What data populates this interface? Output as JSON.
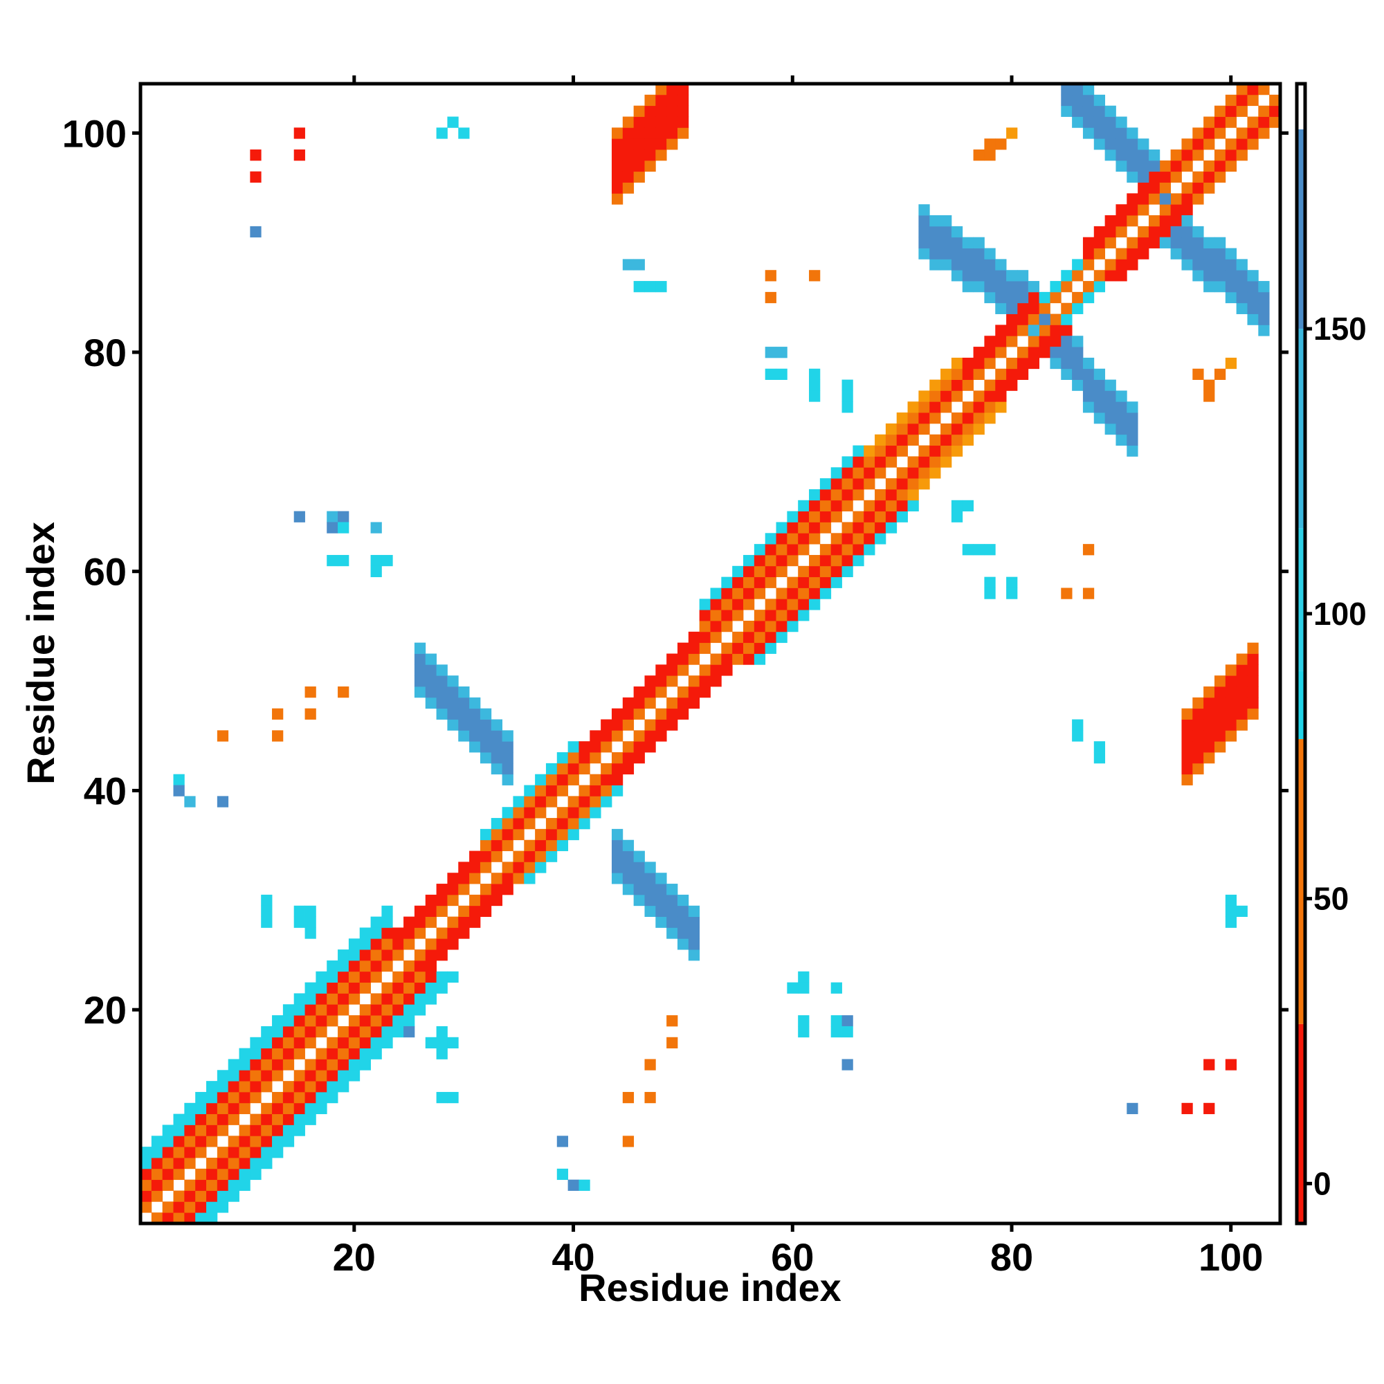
{
  "chart_data": {
    "type": "heatmap",
    "title": "",
    "xlabel": "Residue index",
    "ylabel": "Residue index",
    "xlim": [
      1,
      104
    ],
    "ylim": [
      1,
      104
    ],
    "x_ticks": [
      20,
      40,
      60,
      80,
      100
    ],
    "y_ticks": [
      20,
      40,
      60,
      80,
      100
    ],
    "colorbar": {
      "ticks": [
        0,
        50,
        100,
        150
      ],
      "range": [
        -7,
        193
      ],
      "bins": [
        {
          "from": -7,
          "to": 28,
          "color": "#f51a0a"
        },
        {
          "from": 28,
          "to": 78,
          "color": "#f2750a"
        },
        {
          "from": 78,
          "to": 90,
          "color": "#21d4e8"
        },
        {
          "from": 90,
          "to": 115,
          "color": "#2ed0e6"
        },
        {
          "from": 115,
          "to": 150,
          "color": "#3cb8de"
        },
        {
          "from": 150,
          "to": 185,
          "color": "#4a8cc8"
        },
        {
          "from": 185,
          "to": 193,
          "color": "#ffffff"
        }
      ]
    },
    "categories": [
      {
        "name": "red",
        "color": "#f51a0a",
        "value": 5
      },
      {
        "name": "orange",
        "color": "#f2750a",
        "value": 50
      },
      {
        "name": "amber",
        "color": "#f79a0a",
        "value": 70
      },
      {
        "name": "cyan",
        "color": "#21d4e8",
        "value": 95
      },
      {
        "name": "light-blue",
        "color": "#3cb8de",
        "value": 120
      },
      {
        "name": "steel-blue",
        "color": "#4a8cc8",
        "value": 165
      }
    ],
    "diagonal_band": {
      "pattern_by_offset": {
        "1": 1,
        "2": 0,
        "3": 1,
        "4": 0,
        "5": 3,
        "6": 1
      },
      "segments": [
        {
          "from": 1,
          "to": 23,
          "max_offset": 6,
          "outer_color": 3
        },
        {
          "from": 24,
          "to": 31,
          "max_offset": 3,
          "outer_color": 0
        },
        {
          "from": 32,
          "to": 40,
          "max_offset": 4,
          "outer_color": 3
        },
        {
          "from": 41,
          "to": 51,
          "max_offset": 3,
          "outer_color": 0
        },
        {
          "from": 52,
          "to": 66,
          "max_offset": 5,
          "outer_color": 3
        },
        {
          "from": 67,
          "to": 75,
          "max_offset": 4,
          "outer_color": 2
        },
        {
          "from": 76,
          "to": 82,
          "max_offset": 3,
          "outer_color": 0
        },
        {
          "from": 83,
          "to": 86,
          "max_offset": 2,
          "outer_color": 3
        },
        {
          "from": 87,
          "to": 93,
          "max_offset": 3,
          "outer_color": 0
        },
        {
          "from": 94,
          "to": 104,
          "max_offset": 3,
          "outer_color": 1
        }
      ]
    },
    "antiparallel_bands": [
      {
        "i_from": 26,
        "i_to": 34,
        "j_start": 51,
        "j_step": -1,
        "width": 2,
        "color": 5,
        "edge_color": 4
      },
      {
        "i_from": 44,
        "i_to": 51,
        "j_start": 34,
        "j_step": -1,
        "width": 2,
        "color": 5,
        "edge_color": 4
      },
      {
        "i_from": 72,
        "i_to": 83,
        "j_start": 91,
        "j_step": -0.7,
        "width": 2,
        "color": 5,
        "edge_color": 4
      },
      {
        "i_from": 84,
        "i_to": 91,
        "j_start": 81,
        "j_step": -1.2,
        "width": 2,
        "color": 5,
        "edge_color": 4
      },
      {
        "i_from": 85,
        "i_to": 94,
        "j_start": 104,
        "j_step": -1,
        "width": 2,
        "color": 5,
        "edge_color": 4
      },
      {
        "i_from": 94,
        "i_to": 103,
        "j_start": 92,
        "j_step": -0.9,
        "width": 2,
        "color": 5,
        "edge_color": 4
      }
    ],
    "parallel_bands": [
      {
        "i_from": 44,
        "i_to": 50,
        "j_start": 97,
        "j_step": 1,
        "width": 3,
        "color": 0,
        "edge_color": 1
      },
      {
        "i_from": 96,
        "i_to": 102,
        "j_start": 44,
        "j_step": 1,
        "width": 3,
        "color": 0,
        "edge_color": 1
      }
    ],
    "points": [
      [
        11,
        98,
        0
      ],
      [
        11,
        96,
        0
      ],
      [
        15,
        100,
        0
      ],
      [
        15,
        98,
        0
      ],
      [
        11,
        91,
        5
      ],
      [
        28,
        100,
        3
      ],
      [
        29,
        101,
        3
      ],
      [
        30,
        100,
        3
      ],
      [
        45,
        88,
        4
      ],
      [
        46,
        88,
        4
      ],
      [
        46,
        86,
        3
      ],
      [
        47,
        86,
        3
      ],
      [
        48,
        86,
        3
      ],
      [
        58,
        87,
        1
      ],
      [
        58,
        85,
        1
      ],
      [
        62,
        87,
        1
      ],
      [
        58,
        80,
        4
      ],
      [
        59,
        80,
        4
      ],
      [
        58,
        78,
        3
      ],
      [
        59,
        78,
        3
      ],
      [
        62,
        78,
        3
      ],
      [
        62,
        77,
        3
      ],
      [
        62,
        76,
        3
      ],
      [
        65,
        77,
        3
      ],
      [
        65,
        76,
        3
      ],
      [
        65,
        75,
        3
      ],
      [
        77,
        98,
        1
      ],
      [
        78,
        98,
        1
      ],
      [
        78,
        99,
        1
      ],
      [
        79,
        99,
        1
      ],
      [
        80,
        100,
        2
      ],
      [
        97,
        78,
        1
      ],
      [
        98,
        77,
        1
      ],
      [
        98,
        76,
        1
      ],
      [
        99,
        78,
        1
      ],
      [
        100,
        79,
        2
      ],
      [
        15,
        65,
        5
      ],
      [
        18,
        65,
        4
      ],
      [
        18,
        64,
        5
      ],
      [
        19,
        65,
        5
      ],
      [
        19,
        64,
        3
      ],
      [
        22,
        64,
        4
      ],
      [
        18,
        61,
        3
      ],
      [
        19,
        61,
        3
      ],
      [
        22,
        61,
        3
      ],
      [
        23,
        61,
        3
      ],
      [
        22,
        60,
        3
      ],
      [
        16,
        49,
        1
      ],
      [
        19,
        49,
        1
      ],
      [
        13,
        47,
        1
      ],
      [
        16,
        47,
        1
      ],
      [
        8,
        45,
        1
      ],
      [
        13,
        45,
        1
      ],
      [
        4,
        41,
        3
      ],
      [
        4,
        40,
        5
      ],
      [
        5,
        39,
        4
      ],
      [
        8,
        39,
        5
      ],
      [
        12,
        30,
        3
      ],
      [
        12,
        29,
        3
      ],
      [
        12,
        28,
        3
      ],
      [
        15,
        29,
        3
      ],
      [
        16,
        29,
        3
      ],
      [
        16,
        28,
        3
      ],
      [
        16,
        27,
        3
      ],
      [
        15,
        28,
        3
      ],
      [
        28,
        18,
        3
      ],
      [
        27,
        17,
        3
      ],
      [
        28,
        17,
        3
      ],
      [
        29,
        17,
        3
      ],
      [
        28,
        16,
        3
      ],
      [
        25,
        18,
        5
      ],
      [
        28,
        12,
        3
      ],
      [
        29,
        12,
        3
      ],
      [
        39,
        8,
        5
      ],
      [
        39,
        5,
        3
      ],
      [
        40,
        4,
        5
      ],
      [
        41,
        4,
        3
      ],
      [
        49,
        19,
        1
      ],
      [
        49,
        17,
        1
      ],
      [
        47,
        15,
        1
      ],
      [
        45,
        12,
        1
      ],
      [
        47,
        12,
        1
      ],
      [
        45,
        8,
        1
      ],
      [
        61,
        23,
        3
      ],
      [
        60,
        22,
        3
      ],
      [
        61,
        22,
        3
      ],
      [
        64,
        22,
        3
      ],
      [
        61,
        19,
        3
      ],
      [
        61,
        18,
        3
      ],
      [
        64,
        19,
        3
      ],
      [
        65,
        19,
        5
      ],
      [
        64,
        18,
        3
      ],
      [
        65,
        18,
        3
      ],
      [
        65,
        15,
        5
      ],
      [
        75,
        66,
        3
      ],
      [
        76,
        66,
        3
      ],
      [
        75,
        65,
        3
      ],
      [
        77,
        62,
        3
      ],
      [
        78,
        62,
        3
      ],
      [
        76,
        62,
        3
      ],
      [
        78,
        59,
        3
      ],
      [
        78,
        58,
        3
      ],
      [
        80,
        59,
        3
      ],
      [
        80,
        58,
        3
      ],
      [
        87,
        62,
        1
      ],
      [
        85,
        58,
        1
      ],
      [
        87,
        58,
        1
      ],
      [
        86,
        46,
        3
      ],
      [
        86,
        45,
        3
      ],
      [
        88,
        44,
        3
      ],
      [
        88,
        43,
        3
      ],
      [
        100,
        30,
        3
      ],
      [
        100,
        29,
        3
      ],
      [
        101,
        29,
        3
      ],
      [
        100,
        28,
        3
      ],
      [
        98,
        15,
        0
      ],
      [
        100,
        15,
        0
      ],
      [
        96,
        11,
        0
      ],
      [
        98,
        11,
        0
      ],
      [
        91,
        11,
        5
      ]
    ]
  }
}
